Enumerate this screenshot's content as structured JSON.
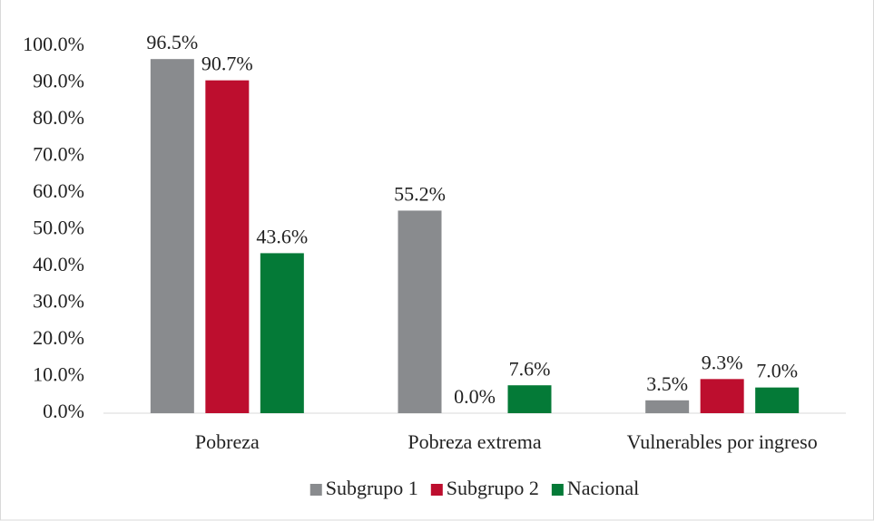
{
  "chart_data": {
    "type": "bar",
    "categories": [
      "Pobreza",
      "Pobreza extrema",
      "Vulnerables por ingreso"
    ],
    "series": [
      {
        "name": "Subgrupo 1",
        "color": "#898b8e",
        "values": [
          96.5,
          55.2,
          3.5
        ],
        "value_labels": [
          "96.5%",
          "55.2%",
          "3.5%"
        ]
      },
      {
        "name": "Subgrupo 2",
        "color": "#bd0e2e",
        "values": [
          90.7,
          0.0,
          9.3
        ],
        "value_labels": [
          "90.7%",
          "0.0%",
          "9.3%"
        ]
      },
      {
        "name": "Nacional",
        "color": "#047a37",
        "values": [
          43.6,
          7.6,
          7.0
        ],
        "value_labels": [
          "43.6%",
          "7.6%",
          "7.0%"
        ]
      }
    ],
    "ylim": [
      0,
      100
    ],
    "yticks": [
      {
        "value": 0,
        "label": "0.0%"
      },
      {
        "value": 10,
        "label": "10.0%"
      },
      {
        "value": 20,
        "label": "20.0%"
      },
      {
        "value": 30,
        "label": "30.0%"
      },
      {
        "value": 40,
        "label": "40.0%"
      },
      {
        "value": 50,
        "label": "50.0%"
      },
      {
        "value": 60,
        "label": "60.0%"
      },
      {
        "value": 70,
        "label": "70.0%"
      },
      {
        "value": 80,
        "label": "80.0%"
      },
      {
        "value": 90,
        "label": "90.0%"
      },
      {
        "value": 100,
        "label": "100.0%"
      }
    ],
    "grid": false,
    "legend": "bottom"
  }
}
